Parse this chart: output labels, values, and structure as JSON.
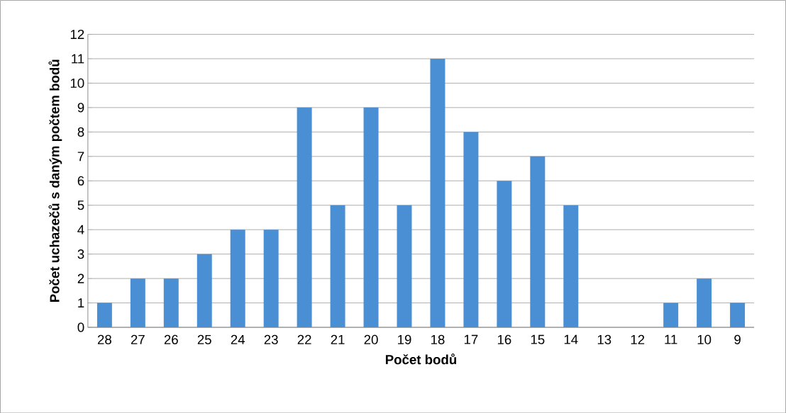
{
  "chart_data": {
    "type": "bar",
    "xlabel": "Počet bodů",
    "ylabel": "Počet uchazečů s daným počtem bodů",
    "categories": [
      "28",
      "27",
      "26",
      "25",
      "24",
      "23",
      "22",
      "21",
      "20",
      "19",
      "18",
      "17",
      "16",
      "15",
      "14",
      "13",
      "12",
      "11",
      "10",
      "9"
    ],
    "values": [
      1,
      2,
      2,
      3,
      4,
      4,
      9,
      5,
      9,
      5,
      11,
      8,
      6,
      7,
      5,
      0,
      0,
      1,
      2,
      1
    ],
    "color": "#4a8fd4",
    "ylim": [
      0,
      12
    ],
    "yticks": [
      0,
      1,
      2,
      3,
      4,
      5,
      6,
      7,
      8,
      9,
      10,
      11,
      12
    ],
    "grid": "y"
  }
}
